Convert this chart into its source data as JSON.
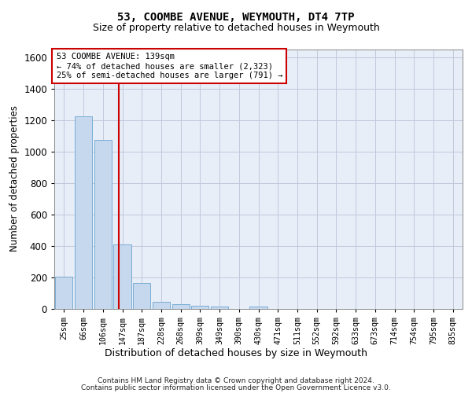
{
  "title": "53, COOMBE AVENUE, WEYMOUTH, DT4 7TP",
  "subtitle": "Size of property relative to detached houses in Weymouth",
  "xlabel": "Distribution of detached houses by size in Weymouth",
  "ylabel": "Number of detached properties",
  "categories": [
    "25sqm",
    "66sqm",
    "106sqm",
    "147sqm",
    "187sqm",
    "228sqm",
    "268sqm",
    "309sqm",
    "349sqm",
    "390sqm",
    "430sqm",
    "471sqm",
    "511sqm",
    "552sqm",
    "592sqm",
    "633sqm",
    "673sqm",
    "714sqm",
    "754sqm",
    "795sqm",
    "835sqm"
  ],
  "values": [
    205,
    1225,
    1075,
    410,
    162,
    45,
    27,
    18,
    14,
    0,
    14,
    0,
    0,
    0,
    0,
    0,
    0,
    0,
    0,
    0,
    0
  ],
  "bar_color": "#c5d8ee",
  "bar_edge_color": "#7aadd4",
  "vline_pos": 2.82,
  "vline_color": "#cc0000",
  "annotation_text": "53 COOMBE AVENUE: 139sqm\n← 74% of detached houses are smaller (2,323)\n25% of semi-detached houses are larger (791) →",
  "ylim": [
    0,
    1650
  ],
  "yticks": [
    0,
    200,
    400,
    600,
    800,
    1000,
    1200,
    1400,
    1600
  ],
  "bg_color": "#e8eef8",
  "grid_color": "#c0c8dc",
  "footer_line1": "Contains HM Land Registry data © Crown copyright and database right 2024.",
  "footer_line2": "Contains public sector information licensed under the Open Government Licence v3.0."
}
